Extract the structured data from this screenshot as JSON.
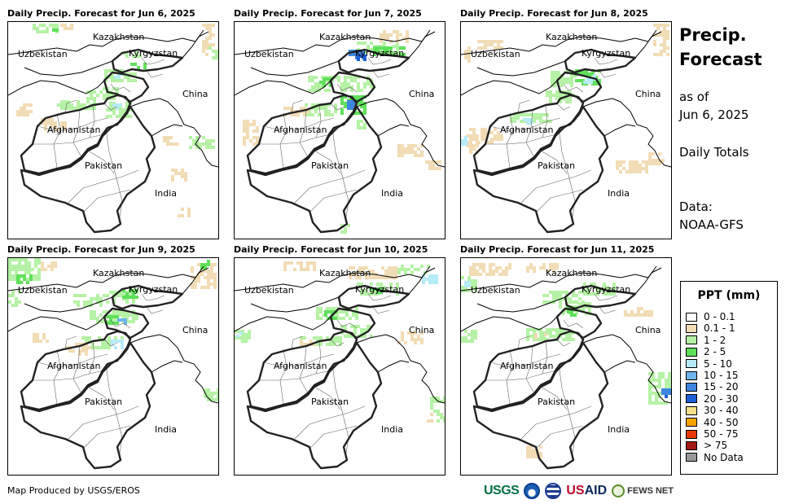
{
  "panels": [
    {
      "title": "Daily Precip. Forecast for Jun 6, 2025"
    },
    {
      "title": "Daily Precip. Forecast for Jun 7, 2025"
    },
    {
      "title": "Daily Precip. Forecast for Jun 8, 2025"
    },
    {
      "title": "Daily Precip. Forecast for Jun 9, 2025"
    },
    {
      "title": "Daily Precip. Forecast for Jun 10, 2025"
    },
    {
      "title": "Daily Precip. Forecast for Jun 11, 2025"
    }
  ],
  "map_labels": {
    "kazakhstan": "Kazakhstan",
    "uzbekistan": "Uzbekistan",
    "kyrgyzstan": "Kyrgyzstan",
    "china": "China",
    "afghanistan": "Afghanistan",
    "pakistan": "Pakistan",
    "india": "India"
  },
  "sidebar": {
    "title_line1": "Precip.",
    "title_line2": "Forecast",
    "asof_line1": "as of",
    "asof_line2": "Jun 6, 2025",
    "totals": "Daily Totals",
    "data_line1": "Data:",
    "data_line2": "NOAA-GFS"
  },
  "legend": {
    "title": "PPT (mm)",
    "items": [
      {
        "label": "0 - 0.1",
        "color": "#ffffff"
      },
      {
        "label": "0.1 - 1",
        "color": "#f2dcb5"
      },
      {
        "label": "1 - 2",
        "color": "#b5f2a5"
      },
      {
        "label": "2 - 5",
        "color": "#5fe05a"
      },
      {
        "label": "5 - 10",
        "color": "#b5ecf7"
      },
      {
        "label": "10 - 15",
        "color": "#6fb3ef"
      },
      {
        "label": "15 - 20",
        "color": "#3f86e0"
      },
      {
        "label": "20 - 30",
        "color": "#1d5fd6"
      },
      {
        "label": "30 - 40",
        "color": "#f7e08a"
      },
      {
        "label": "40 - 50",
        "color": "#f5a300"
      },
      {
        "label": "50 - 75",
        "color": "#e63a00"
      },
      {
        "label": "> 75",
        "color": "#a31919"
      },
      {
        "label": "No Data",
        "color": "#999999"
      }
    ]
  },
  "footer": {
    "credit": "Map Produced by USGS/EROS",
    "logo_usgs": "USGS",
    "logo_usaid_a": "US",
    "logo_usaid_b": "AID",
    "logo_fews": "FEWS NET"
  }
}
